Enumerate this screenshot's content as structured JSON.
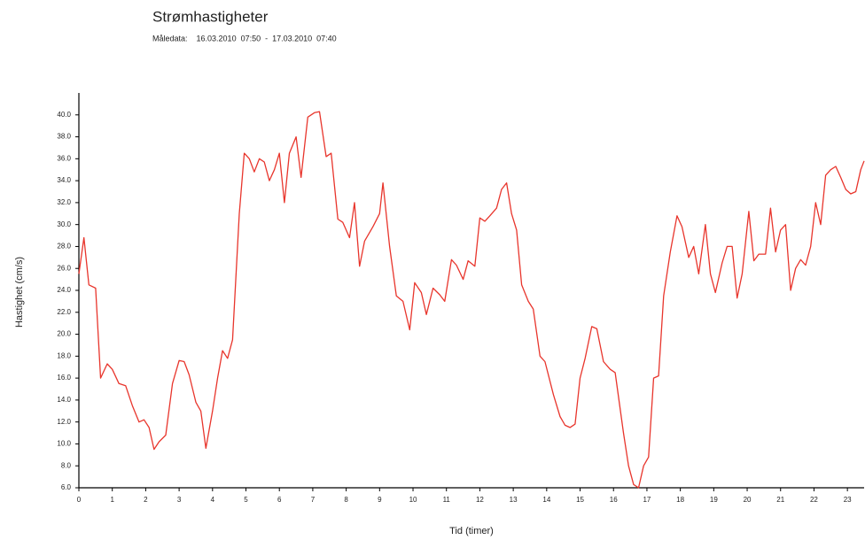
{
  "chart_data": {
    "type": "line",
    "title": "Strømhastigheter",
    "subtitle": "Måledata:    16.03.2010  07:50  -  17.03.2010  07:40",
    "xlabel": "Tid (timer)",
    "ylabel": "Hastighet (cm/s)",
    "color": "#e8352c",
    "xlim": [
      0,
      23.5
    ],
    "ylim": [
      6,
      42
    ],
    "xticks": [
      0,
      1,
      2,
      3,
      4,
      5,
      6,
      7,
      8,
      9,
      10,
      11,
      12,
      13,
      14,
      15,
      16,
      17,
      18,
      19,
      20,
      21,
      22,
      23
    ],
    "yticks": [
      {
        "value": 6,
        "label": "6.0"
      },
      {
        "value": 8,
        "label": "8.0"
      },
      {
        "value": 10,
        "label": "10.0"
      },
      {
        "value": 12,
        "label": "12.0"
      },
      {
        "value": 14,
        "label": "14.0"
      },
      {
        "value": 16,
        "label": "16.0"
      },
      {
        "value": 18,
        "label": "18.0"
      },
      {
        "value": 20,
        "label": "20.0"
      },
      {
        "value": 22,
        "label": "22.0"
      },
      {
        "value": 24,
        "label": "24.0"
      },
      {
        "value": 26,
        "label": "26.0"
      },
      {
        "value": 28,
        "label": "28.0"
      },
      {
        "value": 30,
        "label": "30.0"
      },
      {
        "value": 32,
        "label": "32.0"
      },
      {
        "value": 34,
        "label": "34.0"
      },
      {
        "value": 36,
        "label": "36.0"
      },
      {
        "value": 38,
        "label": "38.0"
      },
      {
        "value": 40,
        "label": "40.0"
      }
    ],
    "x": [
      0.0,
      0.15,
      0.3,
      0.5,
      0.65,
      0.85,
      1.0,
      1.2,
      1.4,
      1.6,
      1.8,
      1.95,
      2.1,
      2.25,
      2.4,
      2.6,
      2.8,
      3.0,
      3.15,
      3.3,
      3.5,
      3.65,
      3.8,
      4.0,
      4.15,
      4.3,
      4.45,
      4.6,
      4.8,
      4.95,
      5.1,
      5.25,
      5.4,
      5.55,
      5.7,
      5.85,
      6.0,
      6.15,
      6.3,
      6.5,
      6.65,
      6.85,
      7.05,
      7.2,
      7.4,
      7.55,
      7.75,
      7.9,
      8.1,
      8.25,
      8.4,
      8.55,
      8.8,
      9.0,
      9.1,
      9.3,
      9.5,
      9.7,
      9.9,
      10.05,
      10.25,
      10.4,
      10.6,
      10.8,
      10.95,
      11.15,
      11.3,
      11.5,
      11.65,
      11.85,
      12.0,
      12.15,
      12.3,
      12.5,
      12.65,
      12.8,
      12.95,
      13.1,
      13.25,
      13.45,
      13.6,
      13.8,
      13.95,
      14.2,
      14.4,
      14.55,
      14.7,
      14.85,
      15.0,
      15.15,
      15.35,
      15.5,
      15.7,
      15.9,
      16.05,
      16.3,
      16.45,
      16.6,
      16.75,
      16.9,
      17.05,
      17.2,
      17.35,
      17.5,
      17.7,
      17.9,
      18.05,
      18.25,
      18.4,
      18.55,
      18.75,
      18.9,
      19.05,
      19.25,
      19.4,
      19.55,
      19.7,
      19.85,
      20.05,
      20.2,
      20.35,
      20.55,
      20.7,
      20.85,
      21.0,
      21.15,
      21.3,
      21.45,
      21.6,
      21.75,
      21.9,
      22.05,
      22.2,
      22.35,
      22.5,
      22.65,
      22.8,
      22.95,
      23.1,
      23.25,
      23.4,
      23.5
    ],
    "values": [
      25.5,
      28.8,
      24.5,
      24.2,
      16.0,
      17.3,
      16.8,
      15.5,
      15.3,
      13.5,
      12.0,
      12.2,
      11.5,
      9.5,
      10.2,
      10.8,
      15.5,
      17.6,
      17.5,
      16.3,
      13.8,
      13.0,
      9.6,
      13.0,
      16.0,
      18.5,
      17.8,
      19.5,
      31.0,
      36.5,
      36.0,
      34.8,
      36.0,
      35.7,
      34.0,
      35.0,
      36.5,
      32.0,
      36.5,
      38.0,
      34.3,
      39.8,
      40.2,
      40.3,
      36.2,
      36.5,
      30.5,
      30.2,
      28.8,
      32.0,
      26.2,
      28.5,
      29.8,
      31.0,
      33.8,
      28.0,
      23.5,
      23.0,
      20.4,
      24.7,
      23.8,
      21.8,
      24.2,
      23.6,
      23.0,
      26.8,
      26.3,
      25.0,
      26.7,
      26.2,
      30.6,
      30.3,
      30.8,
      31.5,
      33.2,
      33.8,
      31.0,
      29.5,
      24.5,
      23.0,
      22.3,
      18.0,
      17.5,
      14.5,
      12.5,
      11.7,
      11.5,
      11.8,
      16.0,
      17.8,
      20.7,
      20.5,
      17.5,
      16.8,
      16.5,
      11.0,
      8.0,
      6.3,
      6.0,
      8.0,
      8.8,
      16.0,
      16.2,
      23.5,
      27.5,
      30.8,
      29.8,
      27.0,
      28.0,
      25.5,
      30.0,
      25.5,
      23.8,
      26.5,
      28.0,
      28.0,
      23.3,
      25.5,
      31.2,
      26.7,
      27.3,
      27.3,
      31.5,
      27.5,
      29.5,
      30.0,
      24.0,
      26.0,
      26.8,
      26.3,
      28.0,
      32.0,
      30.0,
      34.5,
      35.0,
      35.3,
      34.3,
      33.2,
      32.8,
      33.0,
      35.0,
      35.8
    ]
  }
}
